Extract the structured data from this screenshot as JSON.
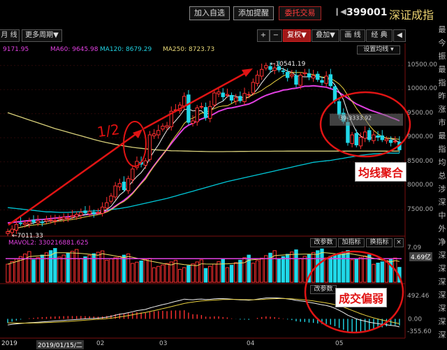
{
  "toolbar": {
    "add_watch": "加入自选",
    "add_alert": "添加提醒",
    "trade": "委托交易",
    "stock_code": "399001",
    "stock_name": "深证成指"
  },
  "chart_tools": {
    "line_tab": "月 线",
    "period": "更多周期",
    "plus": "+",
    "minus": "−",
    "fq": "复权",
    "overlay": "叠加",
    "draw": "画 线",
    "classic": "经 典",
    "collapse": "◀"
  },
  "ma_legend": {
    "ma_first": "9171.95",
    "ma60": "MA60: 9645.98",
    "ma120": "MA120: 8679.29",
    "ma250": "MA250: 8723.73",
    "ma_settings": "设置均线"
  },
  "price_axis": [
    "10500.00",
    "10000.00",
    "9500.00",
    "9000.00",
    "8500.00",
    "8000.00",
    "7500.00"
  ],
  "price_labels": {
    "high": "10541.19",
    "low": "7011.33",
    "highlight": "39-3333.92"
  },
  "volume": {
    "legend": "MAVOL2: 330216881.625",
    "change_params": "改参数",
    "add_indicator": "加指标",
    "switch_indicator": "换指标",
    "close": "×",
    "axis_top": "7.09",
    "axis_mid": "4.69亿"
  },
  "macd": {
    "change_params": "改参数",
    "axis_top": "492.46",
    "axis_zero": "0.00",
    "axis_bottom": "-355.60"
  },
  "dates": {
    "year": "2019",
    "cursor_date": "2019/01/15/二",
    "months": [
      "02",
      "03",
      "04",
      "05"
    ]
  },
  "annotations": {
    "half": "1/2",
    "ma_converge": "均线聚合",
    "volume_weak": "成交偏弱"
  },
  "side_chars": [
    "最",
    "今",
    "振",
    "最",
    "指",
    "昨",
    "涨",
    "市",
    "最",
    "指",
    "均",
    "总",
    "涉",
    "深",
    "中",
    "外",
    "净",
    "深",
    "深",
    "深",
    "深",
    "深",
    "深",
    "深"
  ],
  "chart_data": {
    "type": "candlestick",
    "x": [
      "2019-01-02",
      "2019-01-03",
      "2019-01-04",
      "2019-01-07",
      "2019-01-08",
      "2019-01-09",
      "2019-01-10",
      "2019-01-11",
      "2019-01-14",
      "2019-01-15",
      "2019-01-16",
      "2019-01-17",
      "2019-01-18",
      "2019-01-21",
      "2019-01-22",
      "2019-01-23",
      "2019-01-24",
      "2019-01-25",
      "2019-01-28",
      "2019-01-29",
      "2019-01-30",
      "2019-01-31",
      "2019-02-01",
      "2019-02-11",
      "2019-02-12",
      "2019-02-13",
      "2019-02-14",
      "2019-02-15",
      "2019-02-18",
      "2019-02-19",
      "2019-02-20",
      "2019-02-21",
      "2019-02-22",
      "2019-02-25",
      "2019-02-26",
      "2019-02-27",
      "2019-02-28",
      "2019-03-01",
      "2019-03-04",
      "2019-03-05",
      "2019-03-06",
      "2019-03-07",
      "2019-03-08",
      "2019-03-11",
      "2019-03-12",
      "2019-03-13",
      "2019-03-14",
      "2019-03-15",
      "2019-03-18",
      "2019-03-19",
      "2019-03-20",
      "2019-03-21",
      "2019-03-22",
      "2019-03-25",
      "2019-03-26",
      "2019-03-27",
      "2019-03-28",
      "2019-03-29",
      "2019-04-01",
      "2019-04-02",
      "2019-04-03",
      "2019-04-04",
      "2019-04-08",
      "2019-04-09",
      "2019-04-10",
      "2019-04-11",
      "2019-04-12",
      "2019-04-15",
      "2019-04-16",
      "2019-04-17",
      "2019-04-18",
      "2019-04-19",
      "2019-04-22",
      "2019-04-23",
      "2019-04-24",
      "2019-04-25",
      "2019-04-26",
      "2019-04-29",
      "2019-04-30",
      "2019-05-06",
      "2019-05-07",
      "2019-05-08",
      "2019-05-09",
      "2019-05-10",
      "2019-05-13",
      "2019-05-14",
      "2019-05-15",
      "2019-05-16",
      "2019-05-17",
      "2019-05-20",
      "2019-05-21",
      "2019-05-22"
    ],
    "close": [
      7050,
      7100,
      7200,
      7220,
      7230,
      7260,
      7250,
      7270,
      7240,
      7300,
      7290,
      7280,
      7330,
      7350,
      7330,
      7380,
      7410,
      7450,
      7440,
      7470,
      7420,
      7450,
      7560,
      7650,
      7790,
      8000,
      8050,
      7920,
      8150,
      8350,
      8510,
      8450,
      8520,
      9060,
      9080,
      9150,
      9240,
      9250,
      9550,
      9580,
      9680,
      9860,
      9320,
      9350,
      9620,
      9650,
      9420,
      9650,
      9930,
      9950,
      9850,
      9900,
      9780,
      9830,
      9770,
      9920,
      9900,
      10150,
      10300,
      10420,
      10500,
      10420,
      10450,
      10410,
      10380,
      10250,
      10310,
      10110,
      10300,
      10350,
      10260,
      10290,
      10210,
      10150,
      10280,
      10080,
      9770,
      9480,
      9340,
      8900,
      9060,
      8850,
      9010,
      9120,
      8960,
      9060,
      9010,
      8960,
      8970,
      8900,
      8930,
      8750
    ],
    "high": 10541.19,
    "low": 7011.33,
    "ylim": [
      7000,
      10700
    ],
    "series": [
      {
        "name": "MA60",
        "color": "#e040e0",
        "values": [
          7230,
          7240,
          7250,
          7260,
          7270,
          7280,
          7290,
          7300,
          7300,
          7310,
          7320,
          7330,
          7340,
          7350,
          7360,
          7370,
          7380,
          7390,
          7400,
          7410,
          7420,
          7430,
          7450,
          7480,
          7520,
          7580,
          7640,
          7700,
          7770,
          7850,
          7950,
          8060,
          8170,
          8300,
          8420,
          8540,
          8650,
          8760,
          8880,
          8990,
          9100,
          9200,
          9260,
          9300,
          9350,
          9390,
          9420,
          9450,
          9500,
          9550,
          9580,
          9610,
          9620,
          9640,
          9660,
          9680,
          9700,
          9740,
          9790,
          9840,
          9880,
          9910,
          9940,
          9960,
          9990,
          10000,
          10020,
          10030,
          10050,
          10070,
          10070,
          10080,
          10070,
          10060,
          10050,
          10020,
          9990,
          9940,
          9880,
          9820,
          9760,
          9700,
          9660,
          9620,
          9580,
          9550,
          9520,
          9490,
          9460,
          9420,
          9390,
          9350
        ]
      },
      {
        "name": "MA120",
        "color": "#00c8d8",
        "values": [
          7550,
          7540,
          7530,
          7520,
          7510,
          7500,
          7490,
          7480,
          7470,
          7460,
          7460,
          7455,
          7450,
          7450,
          7450,
          7455,
          7460,
          7465,
          7470,
          7475,
          7480,
          7485,
          7490,
          7500,
          7510,
          7520,
          7530,
          7545,
          7560,
          7580,
          7600,
          7620,
          7640,
          7660,
          7680,
          7700,
          7720,
          7740,
          7765,
          7790,
          7815,
          7840,
          7865,
          7890,
          7915,
          7940,
          7965,
          7990,
          8015,
          8040,
          8065,
          8090,
          8110,
          8130,
          8150,
          8170,
          8190,
          8210,
          8230,
          8250,
          8270,
          8290,
          8310,
          8330,
          8350,
          8370,
          8390,
          8410,
          8430,
          8450,
          8470,
          8490,
          8500,
          8510,
          8520,
          8530,
          8545,
          8560,
          8575,
          8590,
          8605,
          8620,
          8635,
          8645,
          8655,
          8665,
          8670,
          8675,
          8680,
          8680,
          8680,
          8680
        ]
      },
      {
        "name": "MA250",
        "color": "#d8d07a",
        "values": [
          9520,
          9490,
          9460,
          9430,
          9400,
          9370,
          9340,
          9310,
          9280,
          9250,
          9220,
          9190,
          9165,
          9140,
          9115,
          9090,
          9065,
          9040,
          9015,
          8990,
          8965,
          8940,
          8920,
          8900,
          8880,
          8860,
          8845,
          8830,
          8815,
          8800,
          8790,
          8780,
          8770,
          8760,
          8750,
          8745,
          8740,
          8735,
          8730,
          8728,
          8726,
          8724,
          8722,
          8720,
          8718,
          8716,
          8714,
          8712,
          8712,
          8712,
          8712,
          8713,
          8714,
          8715,
          8716,
          8717,
          8718,
          8719,
          8720,
          8720,
          8720,
          8720,
          8721,
          8721,
          8721,
          8722,
          8722,
          8722,
          8722,
          8723,
          8723,
          8723,
          8723,
          8723,
          8723,
          8723,
          8723,
          8723,
          8723,
          8723,
          8723,
          8723,
          8723,
          8723,
          8723,
          8723,
          8723,
          8723,
          8723,
          8723,
          8723,
          8724
        ]
      }
    ],
    "volume_ylim": [
      0,
      7.09
    ],
    "volume_ma_level": 4.69,
    "macd_ylim": [
      -355.6,
      492.46
    ],
    "dif": [
      -120,
      -110,
      -100,
      -92,
      -85,
      -78,
      -72,
      -66,
      -60,
      -55,
      -48,
      -42,
      -36,
      -30,
      -24,
      -18,
      -12,
      -6,
      0,
      6,
      10,
      14,
      22,
      34,
      50,
      72,
      92,
      104,
      122,
      142,
      164,
      176,
      188,
      216,
      240,
      262,
      284,
      300,
      326,
      348,
      368,
      392,
      384,
      380,
      390,
      394,
      384,
      388,
      398,
      404,
      402,
      400,
      392,
      386,
      378,
      376,
      372,
      380,
      392,
      404,
      416,
      418,
      418,
      414,
      408,
      396,
      386,
      368,
      356,
      346,
      330,
      316,
      298,
      280,
      266,
      244,
      210,
      170,
      126,
      72,
      36,
      0,
      -28,
      -44,
      -66,
      -80,
      -94,
      -108,
      -118,
      -130,
      -140,
      -160
    ],
    "dea": [
      -80,
      -82,
      -84,
      -85,
      -85,
      -84,
      -82,
      -80,
      -77,
      -74,
      -70,
      -66,
      -62,
      -57,
      -52,
      -46,
      -40,
      -34,
      -27,
      -20,
      -14,
      -8,
      -2,
      5,
      14,
      26,
      39,
      52,
      66,
      81,
      97,
      113,
      128,
      146,
      165,
      184,
      204,
      223,
      243,
      264,
      285,
      306,
      322,
      334,
      346,
      356,
      362,
      367,
      373,
      379,
      384,
      386,
      387,
      387,
      385,
      383,
      381,
      380,
      382,
      386,
      392,
      397,
      401,
      403,
      404,
      402,
      398,
      392,
      385,
      377,
      367,
      356,
      344,
      331,
      317,
      302,
      283,
      261,
      234,
      202,
      169,
      135,
      102,
      73,
      45,
      20,
      -3,
      -24,
      -43,
      -61,
      -77,
      -94
    ]
  }
}
